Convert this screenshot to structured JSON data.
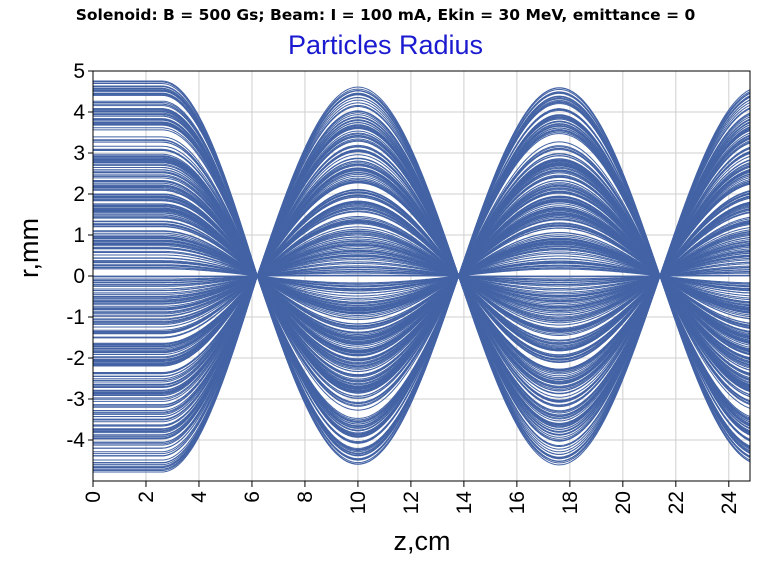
{
  "chart_data": {
    "type": "line",
    "title": "Solenoid: B = 500 Gs; Beam: I = 100 mA, Ekin = 30 MeV, emittance = 0",
    "subtitle": "Particles Radius",
    "xlabel": "z,cm",
    "ylabel": "r,mm",
    "xlim": [
      0,
      24.8
    ],
    "ylim": [
      -5,
      5
    ],
    "x_ticks": [
      "0",
      "2",
      "4",
      "6",
      "8",
      "10",
      "12",
      "14",
      "16",
      "18",
      "20",
      "22",
      "24"
    ],
    "y_ticks": [
      "5",
      "4",
      "3",
      "2",
      "1",
      "0",
      "-1",
      "-2",
      "-3",
      "-4"
    ],
    "grid": true,
    "series_color": "#4363a5",
    "description_values": {
      "initial_radius_max_mm": 4.8,
      "solenoid_entry_z_cm": 2.6,
      "focus_points_z_cm": [
        6.2,
        13.8,
        21.4
      ],
      "envelope_peaks_z_cm": [
        10.0,
        17.6,
        24.8
      ],
      "envelope_peak_radius_mm": 4.7
    }
  }
}
